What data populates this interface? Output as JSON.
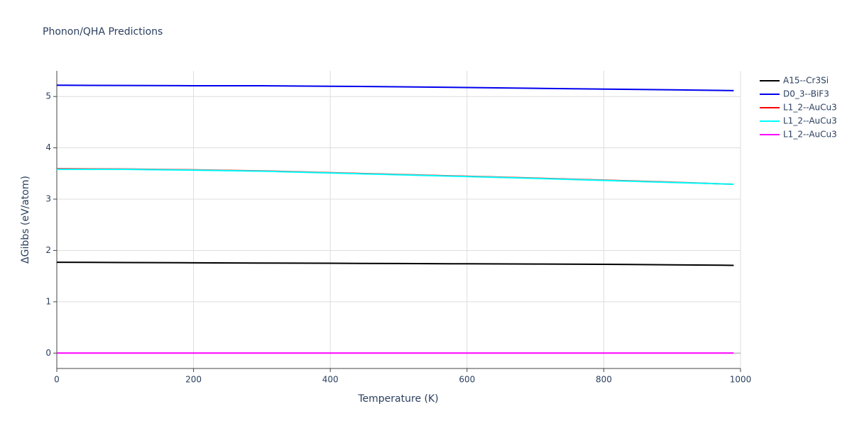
{
  "chart_data": {
    "type": "line",
    "title": "Phonon/QHA Predictions",
    "x_label": "Temperature (K)",
    "y_label": "ΔGibbs (eV/atom)",
    "x": [
      0,
      100,
      200,
      300,
      400,
      500,
      600,
      700,
      800,
      900,
      990
    ],
    "series": [
      {
        "name": "A15--Cr3Si",
        "color": "#000000",
        "values": [
          1.77,
          1.765,
          1.76,
          1.755,
          1.75,
          1.745,
          1.74,
          1.735,
          1.73,
          1.72,
          1.71
        ]
      },
      {
        "name": "D0_3--BiF3",
        "color": "#0000ee",
        "values": [
          5.22,
          5.215,
          5.21,
          5.21,
          5.2,
          5.19,
          5.175,
          5.16,
          5.145,
          5.13,
          5.115
        ]
      },
      {
        "name": "L1_2--AuCu3",
        "color": "#ff0000",
        "values": [
          3.59,
          3.585,
          3.57,
          3.55,
          3.515,
          3.48,
          3.445,
          3.41,
          3.37,
          3.33,
          3.29
        ]
      },
      {
        "name": "L1_2--AuCu3",
        "color": "#00ffff",
        "values": [
          3.58,
          3.58,
          3.565,
          3.545,
          3.51,
          3.475,
          3.44,
          3.405,
          3.365,
          3.325,
          3.29
        ]
      },
      {
        "name": "L1_2--AuCu3",
        "color": "#ff00ff",
        "values": [
          0,
          0,
          0,
          0,
          0,
          0,
          0,
          0,
          0,
          0,
          0
        ]
      }
    ],
    "xlim": [
      0,
      1000
    ],
    "xticks": [
      0,
      200,
      400,
      600,
      800,
      1000
    ],
    "ylim": [
      -0.3,
      5.5
    ],
    "yticks": [
      0,
      1,
      2,
      3,
      4,
      5
    ],
    "grid": true,
    "legend_position": "top-right"
  }
}
